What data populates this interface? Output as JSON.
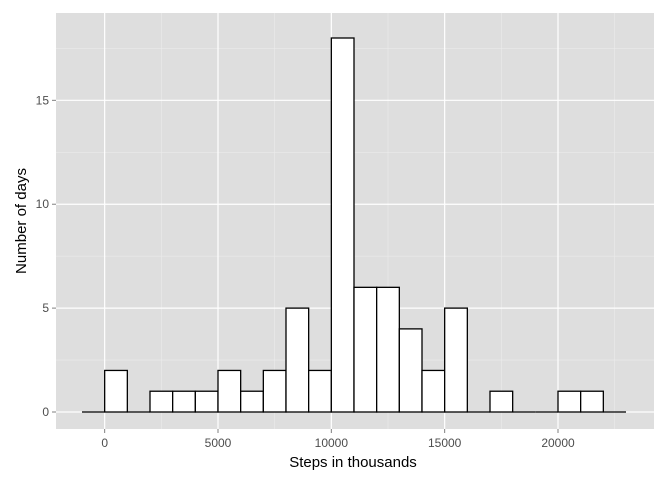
{
  "chart_data": {
    "type": "bar",
    "title": "",
    "xlabel": "Steps in thousands",
    "ylabel": "Number of days",
    "x_ticks": [
      0,
      5000,
      10000,
      15000,
      20000
    ],
    "y_ticks": [
      0,
      5,
      10,
      15
    ],
    "x_range": [
      -1000,
      23000
    ],
    "y_range": [
      0,
      18
    ],
    "bin_width": 1000,
    "bins": [
      {
        "start": -1000,
        "end": 0,
        "count": 0
      },
      {
        "start": 0,
        "end": 1000,
        "count": 2
      },
      {
        "start": 1000,
        "end": 2000,
        "count": 0
      },
      {
        "start": 2000,
        "end": 3000,
        "count": 1
      },
      {
        "start": 3000,
        "end": 4000,
        "count": 1
      },
      {
        "start": 4000,
        "end": 5000,
        "count": 1
      },
      {
        "start": 5000,
        "end": 6000,
        "count": 2
      },
      {
        "start": 6000,
        "end": 7000,
        "count": 1
      },
      {
        "start": 7000,
        "end": 8000,
        "count": 2
      },
      {
        "start": 8000,
        "end": 9000,
        "count": 5
      },
      {
        "start": 9000,
        "end": 10000,
        "count": 2
      },
      {
        "start": 10000,
        "end": 11000,
        "count": 18
      },
      {
        "start": 11000,
        "end": 12000,
        "count": 6
      },
      {
        "start": 12000,
        "end": 13000,
        "count": 6
      },
      {
        "start": 13000,
        "end": 14000,
        "count": 4
      },
      {
        "start": 14000,
        "end": 15000,
        "count": 2
      },
      {
        "start": 15000,
        "end": 16000,
        "count": 5
      },
      {
        "start": 16000,
        "end": 17000,
        "count": 0
      },
      {
        "start": 17000,
        "end": 18000,
        "count": 1
      },
      {
        "start": 18000,
        "end": 19000,
        "count": 0
      },
      {
        "start": 19000,
        "end": 20000,
        "count": 0
      },
      {
        "start": 20000,
        "end": 21000,
        "count": 1
      },
      {
        "start": 21000,
        "end": 22000,
        "count": 1
      },
      {
        "start": 22000,
        "end": 23000,
        "count": 0
      }
    ],
    "grid": true,
    "legend": "none",
    "colors": {
      "panel_background": "#dedede",
      "major_grid": "#ffffff",
      "minor_grid": "#ebebeb",
      "bar_fill": "#ffffff",
      "bar_outline": "#000000",
      "tick_label": "#4d4d4d"
    }
  }
}
